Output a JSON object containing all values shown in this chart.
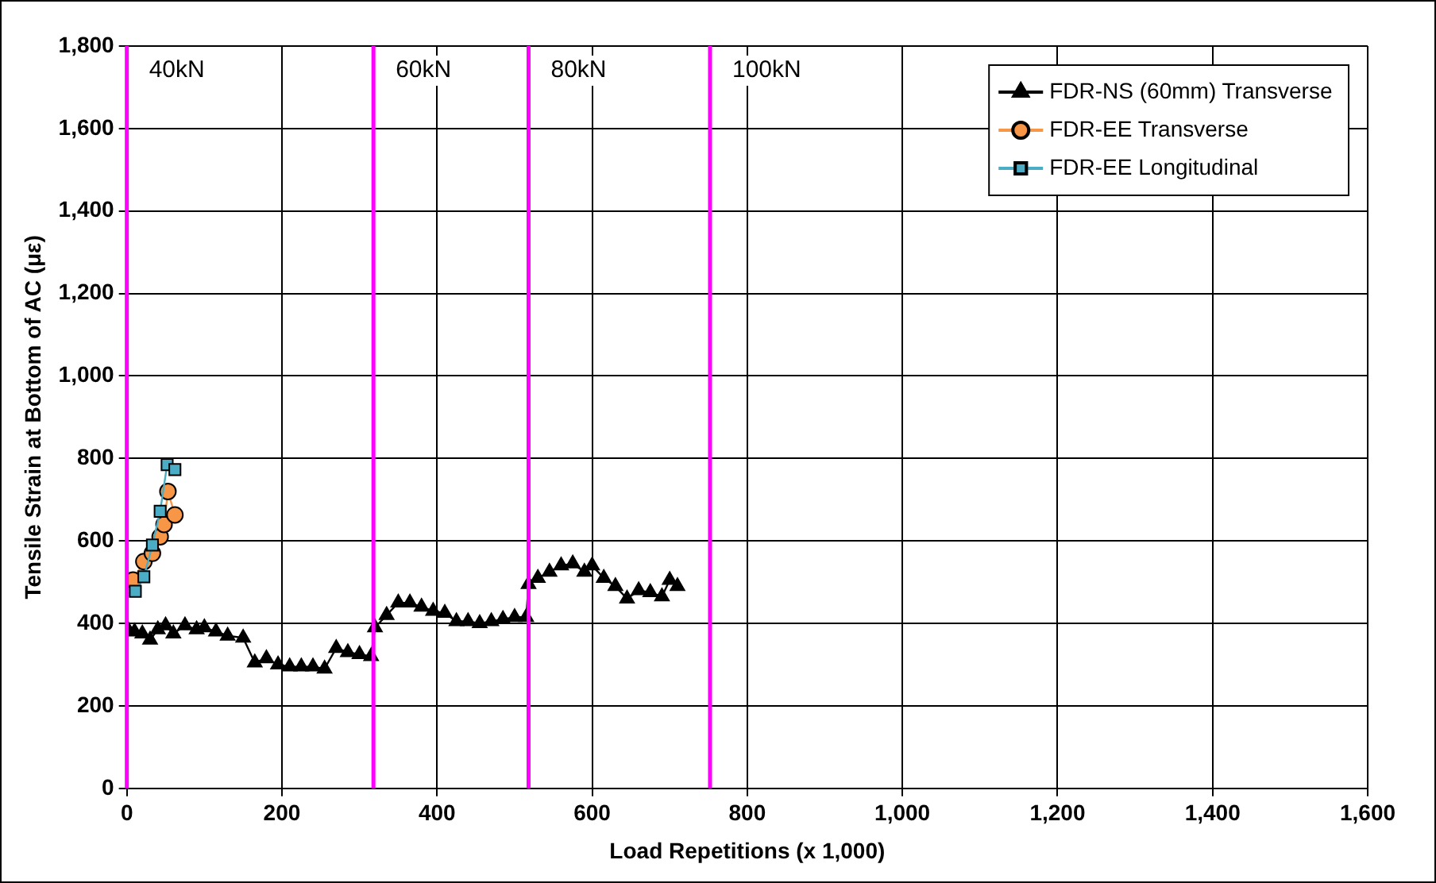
{
  "chart_data": {
    "type": "line",
    "xlabel": "Load Repetitions (x 1,000)",
    "ylabel": "Tensile Strain at Bottom of AC (με)",
    "xlim": [
      0,
      1600
    ],
    "xticks": [
      0,
      {
        "value": 200,
        "label": "200"
      },
      {
        "value": 400,
        "label": "400"
      },
      {
        "value": 600,
        "label": "600"
      },
      {
        "value": 800,
        "label": "800"
      },
      {
        "value": 1000,
        "label": "1,000"
      },
      {
        "value": 1200,
        "label": "1,200"
      },
      {
        "value": 1400,
        "label": "1,400"
      },
      {
        "value": 1600,
        "label": "1,600"
      }
    ],
    "ylim": [
      0,
      1800
    ],
    "yticks": [
      0,
      200,
      400,
      600,
      800,
      {
        "value": 1000,
        "label": "1,000"
      },
      {
        "value": 1200,
        "label": "1,200"
      },
      {
        "value": 1400,
        "label": "1,400"
      },
      {
        "value": 1600,
        "label": "1,600"
      },
      {
        "value": 1800,
        "label": "1,800"
      }
    ],
    "grid": true,
    "legend": "top right",
    "series": [
      {
        "name": "FDR-NS (60mm) Transverse",
        "color": "#000000",
        "marker": "triangle",
        "x": [
          0,
          10,
          20,
          30,
          40,
          50,
          60,
          75,
          90,
          100,
          115,
          130,
          150,
          165,
          180,
          195,
          210,
          225,
          240,
          255,
          270,
          285,
          300,
          315,
          320,
          335,
          350,
          365,
          380,
          395,
          410,
          425,
          440,
          455,
          470,
          485,
          500,
          515,
          518,
          530,
          545,
          560,
          575,
          590,
          600,
          615,
          630,
          645,
          660,
          675,
          690,
          700,
          710
        ],
        "values": [
          390,
          380,
          375,
          360,
          385,
          395,
          375,
          395,
          385,
          390,
          380,
          370,
          365,
          305,
          315,
          300,
          295,
          295,
          295,
          290,
          340,
          330,
          325,
          320,
          390,
          420,
          450,
          450,
          440,
          430,
          425,
          405,
          405,
          400,
          405,
          410,
          415,
          415,
          495,
          510,
          525,
          540,
          545,
          525,
          540,
          510,
          490,
          460,
          480,
          475,
          465,
          505,
          490
        ]
      },
      {
        "name": "FDR-EE Transverse",
        "color": "#f79646",
        "marker": "circle",
        "x": [
          8,
          22,
          33,
          43,
          48,
          53,
          62
        ],
        "values": [
          505,
          550,
          570,
          610,
          640,
          720,
          663
        ]
      },
      {
        "name": "FDR-EE Longitudinal",
        "color": "#4bacc6",
        "marker": "square",
        "x": [
          11,
          22,
          33,
          43,
          52,
          62
        ],
        "values": [
          478,
          513,
          590,
          672,
          785,
          773
        ]
      }
    ],
    "ref_lines": [
      {
        "axis": "x",
        "value": 0,
        "label": "40kN",
        "color": "#ff00ff"
      },
      {
        "axis": "x",
        "value": 318,
        "label": "60kN",
        "color": "#ff00ff"
      },
      {
        "axis": "x",
        "value": 518,
        "label": "80kN",
        "color": "#ff00ff"
      },
      {
        "axis": "x",
        "value": 752,
        "label": "100kN",
        "color": "#ff00ff"
      }
    ]
  }
}
